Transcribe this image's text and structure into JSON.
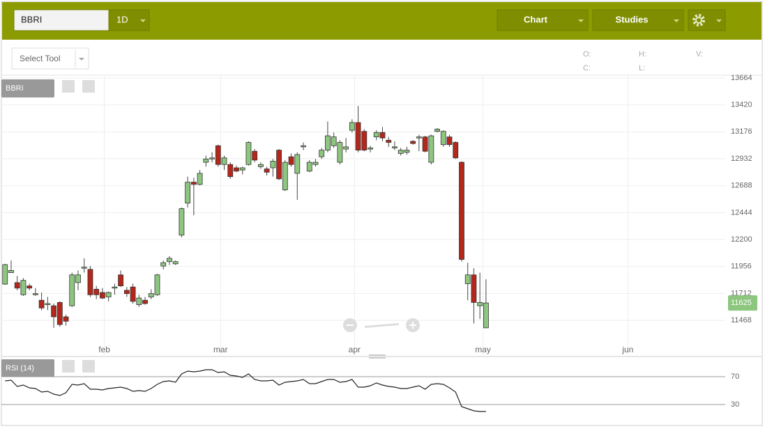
{
  "toolbar": {
    "symbol": "BBRI",
    "interval": "1D",
    "chart": "Chart",
    "studies": "Studies",
    "select_tool": "Select Tool",
    "ohlc_labels": [
      "O:",
      "H:",
      "V:",
      "C:",
      "L:"
    ]
  },
  "chart_data": [
    {
      "type": "candlestick",
      "label": "BBRI",
      "up_color": "#8dc67f",
      "down_color": "#b5271b",
      "last_price": 11625,
      "x": [
        0,
        1,
        2,
        3,
        4,
        5,
        6,
        7,
        8,
        9,
        10,
        11,
        12,
        13,
        14,
        15,
        16,
        17,
        18,
        19,
        20,
        21,
        22,
        23,
        24,
        25,
        26,
        27,
        28,
        29,
        30,
        31,
        32,
        33,
        34,
        35,
        36,
        37,
        38,
        39,
        40,
        41,
        42,
        43,
        44,
        45,
        46,
        47,
        48,
        49,
        50,
        51,
        52,
        53,
        54,
        55,
        56,
        57,
        58,
        59,
        60,
        61,
        62,
        63,
        64,
        65,
        66,
        67,
        68,
        69,
        70,
        71,
        72,
        73,
        74,
        75,
        76,
        77,
        78,
        79
      ],
      "open": [
        11796,
        11900,
        11810,
        11700,
        11780,
        11700,
        11650,
        11610,
        11600,
        11630,
        11500,
        11600,
        11810,
        11940,
        11930,
        11750,
        11720,
        11680,
        11760,
        11880,
        11740,
        11770,
        11610,
        11650,
        11680,
        11700,
        11960,
        12000,
        11980,
        12240,
        12530,
        12720,
        12700,
        12900,
        12930,
        13050,
        12880,
        12880,
        12850,
        12830,
        12880,
        13000,
        12860,
        12840,
        12850,
        13010,
        12650,
        12950,
        12800,
        13040,
        12820,
        12880,
        12950,
        13010,
        13050,
        12900,
        13020,
        13190,
        13260,
        13180,
        13020,
        13130,
        13170,
        13100,
        13030,
        12980,
        12990,
        13090,
        13120,
        13130,
        12900,
        13180,
        13060,
        13130,
        13080,
        12900,
        11800,
        11880,
        11600,
        11400
      ],
      "high": [
        11980,
        12010,
        11870,
        11850,
        11800,
        11760,
        11720,
        11680,
        11620,
        11640,
        11520,
        11900,
        11920,
        12030,
        11960,
        11780,
        11760,
        11730,
        11800,
        11920,
        11770,
        11800,
        11700,
        11680,
        11750,
        11890,
        12010,
        12050,
        12010,
        12490,
        12770,
        12760,
        12830,
        12960,
        12990,
        13060,
        12960,
        12900,
        12870,
        12860,
        13090,
        13020,
        12900,
        12860,
        12930,
        13020,
        12920,
        12980,
        12990,
        13080,
        12920,
        12930,
        13030,
        13270,
        13170,
        13100,
        13120,
        13290,
        13410,
        13200,
        13050,
        13190,
        13220,
        13130,
        13090,
        13030,
        13040,
        13100,
        13150,
        13140,
        13150,
        13210,
        13190,
        13150,
        13090,
        12910,
        11990,
        11940,
        11900,
        11840
      ],
      "low": [
        11790,
        11900,
        11740,
        11690,
        11740,
        11690,
        11560,
        11560,
        11400,
        11410,
        11420,
        11590,
        11740,
        11900,
        11680,
        11660,
        11660,
        11640,
        11700,
        11770,
        11680,
        11620,
        11590,
        11610,
        11660,
        11690,
        11930,
        11970,
        11970,
        12220,
        12490,
        12420,
        12690,
        12860,
        12900,
        12860,
        12830,
        12750,
        12810,
        12790,
        12870,
        12900,
        12840,
        12780,
        12770,
        12740,
        12640,
        12860,
        12560,
        13010,
        12810,
        12860,
        12930,
        12990,
        13030,
        12880,
        12990,
        13170,
        12990,
        13000,
        12990,
        13100,
        13090,
        13040,
        13010,
        12960,
        12970,
        13060,
        13000,
        12990,
        12880,
        13170,
        13040,
        13040,
        12930,
        12000,
        11650,
        11440,
        11480,
        11400
      ],
      "close": [
        11973,
        11920,
        11760,
        11830,
        11760,
        11710,
        11580,
        11620,
        11500,
        11430,
        11460,
        11880,
        11880,
        11950,
        11700,
        11700,
        11670,
        11720,
        11770,
        11780,
        11710,
        11640,
        11670,
        11620,
        11710,
        11880,
        11990,
        12030,
        12000,
        12480,
        12720,
        12700,
        12800,
        12930,
        12940,
        12880,
        12940,
        12770,
        12820,
        12850,
        13080,
        12920,
        12880,
        12810,
        12910,
        12750,
        12900,
        12880,
        12970,
        13050,
        12900,
        12900,
        13010,
        13140,
        13130,
        13080,
        13040,
        13260,
        13010,
        13010,
        13030,
        13170,
        13120,
        13080,
        13040,
        13010,
        13010,
        13070,
        13130,
        13000,
        13140,
        13200,
        13180,
        13060,
        12940,
        12020,
        11880,
        11630,
        11630,
        11625
      ],
      "xlim": [
        -0.6,
        118.3
      ],
      "xticks": [
        {
          "value": 16.3,
          "label": "feb"
        },
        {
          "value": 35.4,
          "label": "mar"
        },
        {
          "value": 57.4,
          "label": "apr"
        },
        {
          "value": 78.5,
          "label": "may"
        },
        {
          "value": 102.3,
          "label": "jun"
        }
      ],
      "ylim": [
        11153,
        13689
      ],
      "yticks": [
        13664,
        13420,
        13176,
        12932,
        12688,
        12444,
        12200,
        11956,
        11712,
        11468
      ],
      "grid": true
    },
    {
      "type": "line",
      "label": "RSI (14)",
      "color": "#222222",
      "x": [
        0,
        1,
        2,
        3,
        4,
        5,
        6,
        7,
        8,
        9,
        10,
        11,
        12,
        13,
        14,
        15,
        16,
        17,
        18,
        19,
        20,
        21,
        22,
        23,
        24,
        25,
        26,
        27,
        28,
        29,
        30,
        31,
        32,
        33,
        34,
        35,
        36,
        37,
        38,
        39,
        40,
        41,
        42,
        43,
        44,
        45,
        46,
        47,
        48,
        49,
        50,
        51,
        52,
        53,
        54,
        55,
        56,
        57,
        58,
        59,
        60,
        61,
        62,
        63,
        64,
        65,
        66,
        67,
        68,
        69,
        70,
        71,
        72,
        73,
        74,
        75,
        76,
        77,
        78,
        79
      ],
      "values": [
        64,
        65,
        56,
        58,
        54,
        53,
        48,
        49,
        45,
        43,
        47,
        59,
        58,
        60,
        52,
        52,
        51,
        53,
        54,
        55,
        53,
        49,
        50,
        49,
        53,
        59,
        63,
        64,
        62,
        74,
        78,
        77,
        78,
        80,
        80,
        76,
        77,
        72,
        71,
        69,
        74,
        66,
        64,
        64,
        65,
        58,
        62,
        63,
        64,
        66,
        60,
        60,
        63,
        66,
        66,
        62,
        63,
        66,
        55,
        55,
        57,
        61,
        58,
        56,
        55,
        53,
        53,
        55,
        57,
        52,
        59,
        60,
        59,
        54,
        48,
        27,
        24,
        21,
        20,
        20
      ],
      "xlim": [
        -0.6,
        118.3
      ],
      "ylim": [
        3,
        96
      ],
      "yticks": [
        70,
        30
      ]
    }
  ]
}
